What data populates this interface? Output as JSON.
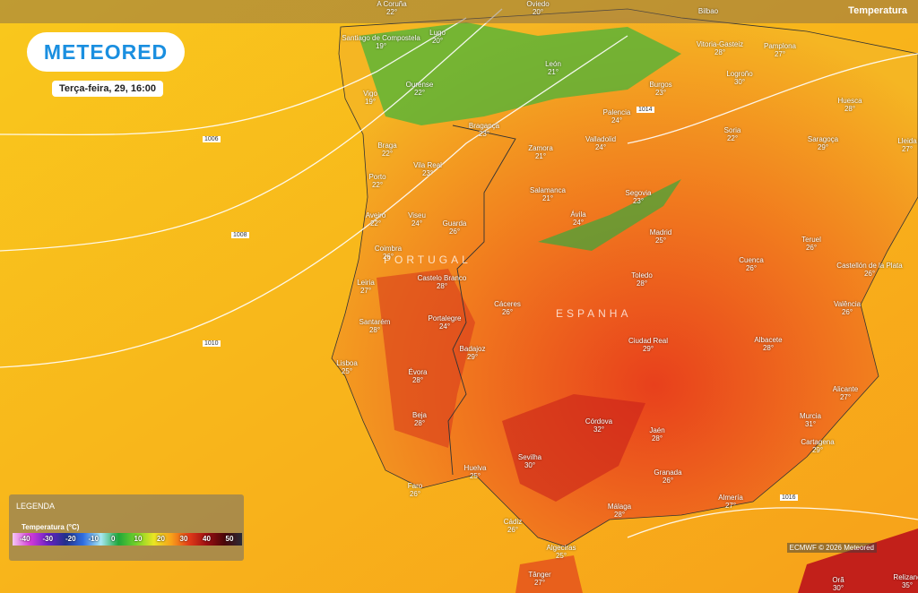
{
  "header": {
    "logo": "METEORED",
    "date": "Terça-feira, 29, 16:00",
    "layer": "Temperatura"
  },
  "legend": {
    "title": "LEGENDA",
    "subtitle": "Temperatura (°C)",
    "scale": [
      "-40",
      "-30",
      "-20",
      "-10",
      "0",
      "10",
      "20",
      "30",
      "40",
      "50"
    ]
  },
  "credit": "ECMWF © 2026 Meteored",
  "countries": [
    "PORTUGAL",
    "ESPANHA"
  ],
  "isobars": [
    "1006",
    "1008",
    "1010",
    "1014",
    "1016"
  ],
  "cities": [
    {
      "name": "A Coruña",
      "temp": "22°"
    },
    {
      "name": "Oviedo",
      "temp": "20°"
    },
    {
      "name": "Bilbao"
    },
    {
      "name": "Santiago de Compostela",
      "temp": "19°"
    },
    {
      "name": "Lugo",
      "temp": "20°"
    },
    {
      "name": "Vitoria-Gasteiz",
      "temp": "28°"
    },
    {
      "name": "Pamplona",
      "temp": "27°"
    },
    {
      "name": "León",
      "temp": "21°"
    },
    {
      "name": "Ourense",
      "temp": "22°"
    },
    {
      "name": "Logroño",
      "temp": "30°"
    },
    {
      "name": "Burgos",
      "temp": "23°"
    },
    {
      "name": "Vigo",
      "temp": "19°"
    },
    {
      "name": "Palencia",
      "temp": "24°"
    },
    {
      "name": "Huesca",
      "temp": "28°"
    },
    {
      "name": "Bragança",
      "temp": "23°"
    },
    {
      "name": "Braga",
      "temp": "22°"
    },
    {
      "name": "Valladolid",
      "temp": "24°"
    },
    {
      "name": "Soria",
      "temp": "22°"
    },
    {
      "name": "Saragoça",
      "temp": "29°"
    },
    {
      "name": "Lleida",
      "temp": "27°"
    },
    {
      "name": "Zamora",
      "temp": "21°"
    },
    {
      "name": "Vila Real",
      "temp": "23°"
    },
    {
      "name": "Porto",
      "temp": "22°"
    },
    {
      "name": "Salamanca",
      "temp": "21°"
    },
    {
      "name": "Segovia",
      "temp": "23°"
    },
    {
      "name": "Aveiro",
      "temp": "22°"
    },
    {
      "name": "Viseu",
      "temp": "24°"
    },
    {
      "name": "Guarda",
      "temp": "26°"
    },
    {
      "name": "Ávila",
      "temp": "24°"
    },
    {
      "name": "Madrid",
      "temp": "25°"
    },
    {
      "name": "Teruel",
      "temp": "26°"
    },
    {
      "name": "Coimbra",
      "temp": "26°"
    },
    {
      "name": "Cuenca",
      "temp": "26°"
    },
    {
      "name": "Castellón de la Plata",
      "temp": "26°"
    },
    {
      "name": "Castelo Branco",
      "temp": "28°"
    },
    {
      "name": "Toledo",
      "temp": "28°"
    },
    {
      "name": "Leiria",
      "temp": "27°"
    },
    {
      "name": "Valência",
      "temp": "26°"
    },
    {
      "name": "Cáceres",
      "temp": "26°"
    },
    {
      "name": "Santarém",
      "temp": "28°"
    },
    {
      "name": "Portalegre",
      "temp": "24°"
    },
    {
      "name": "Ciudad Real",
      "temp": "29°"
    },
    {
      "name": "Albacete",
      "temp": "28°"
    },
    {
      "name": "Lisboa",
      "temp": "25°"
    },
    {
      "name": "Badajoz",
      "temp": "29°"
    },
    {
      "name": "Évora",
      "temp": "28°"
    },
    {
      "name": "Alicante",
      "temp": "27°"
    },
    {
      "name": "Beja",
      "temp": "28°"
    },
    {
      "name": "Córdova",
      "temp": "32°"
    },
    {
      "name": "Murcia",
      "temp": "31°"
    },
    {
      "name": "Jaén",
      "temp": "28°"
    },
    {
      "name": "Cartagena",
      "temp": "29°"
    },
    {
      "name": "Sevilha",
      "temp": "30°"
    },
    {
      "name": "Huelva",
      "temp": "25°"
    },
    {
      "name": "Granada",
      "temp": "26°"
    },
    {
      "name": "Faro",
      "temp": "26°"
    },
    {
      "name": "Almería",
      "temp": "27°"
    },
    {
      "name": "Málaga",
      "temp": "28°"
    },
    {
      "name": "Cádiz",
      "temp": "26°"
    },
    {
      "name": "Algeciras",
      "temp": "25°"
    },
    {
      "name": "Tânger",
      "temp": "27°"
    },
    {
      "name": "Orã",
      "temp": "30°"
    },
    {
      "name": "Relizane",
      "temp": "35°"
    }
  ]
}
